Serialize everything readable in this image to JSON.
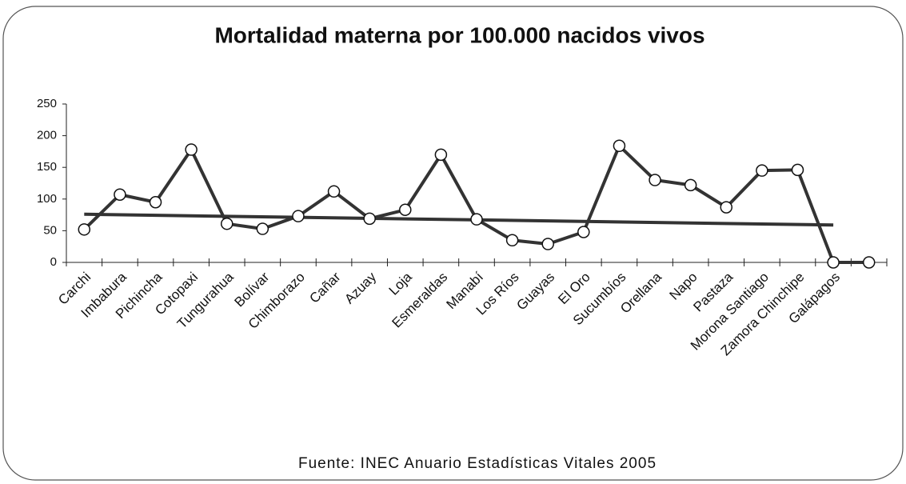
{
  "chart_data": {
    "type": "line",
    "title": "Mortalidad materna por 100.000 nacidos vivos",
    "source": "Fuente: INEC Anuario Estadísticas Vitales 2005",
    "categories": [
      "Carchi",
      "Imbabura",
      "Pichincha",
      "Cotopaxi",
      "Tungurahua",
      "Bolívar",
      "Chimborazo",
      "Cañar",
      "Azuay",
      "Loja",
      "Esmeraldas",
      "Manabí",
      "Los Ríos",
      "Guayas",
      "El Oro",
      "Sucumbíos",
      "Orellana",
      "Napo",
      "Pastaza",
      "Morona Santiago",
      "Zamora Chinchipe",
      "Galápagos",
      null
    ],
    "values": [
      52,
      107,
      95,
      178,
      61,
      53,
      73,
      112,
      69,
      83,
      170,
      68,
      35,
      29,
      48,
      184,
      130,
      122,
      87,
      145,
      146,
      0,
      0
    ],
    "color": "#333333",
    "trendline": [
      76,
      59
    ],
    "ylim": [
      0,
      250
    ],
    "yticks": [
      0,
      50,
      100,
      150,
      200,
      250
    ],
    "grid": false
  }
}
